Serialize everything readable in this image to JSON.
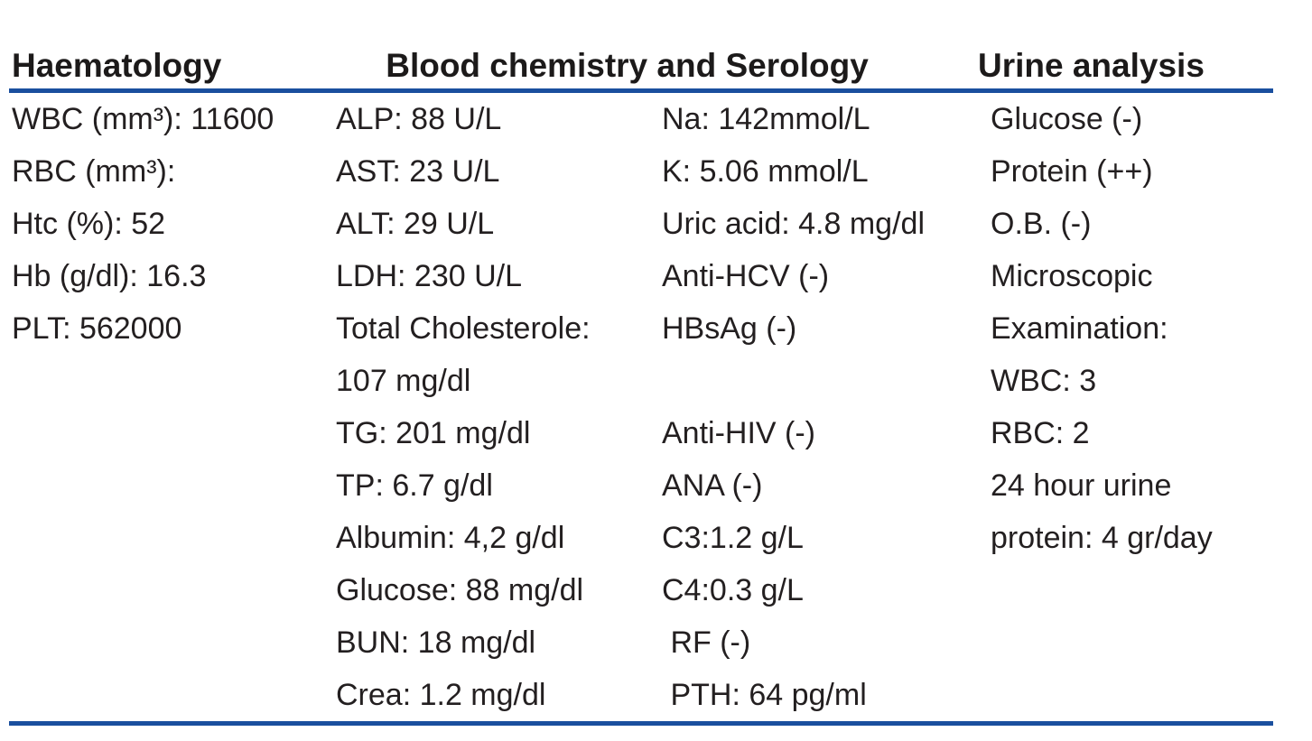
{
  "colors": {
    "accent_rule": "#1a4f9e",
    "body_text": "#231f20",
    "header_text": "#1c1a1a",
    "background": "#ffffff"
  },
  "table": {
    "headers": [
      "Haematology",
      "Blood chemistry and Serology",
      "Urine analysis"
    ],
    "rows": [
      [
        "WBC (mm³): 11600",
        "ALP: 88 U/L",
        "Na: 142mmol/L",
        "Glucose (-)"
      ],
      [
        "RBC (mm³):",
        "AST: 23 U/L",
        "K: 5.06 mmol/L",
        "Protein (++)"
      ],
      [
        "Htc (%): 52",
        "ALT: 29 U/L",
        "Uric acid: 4.8 mg/dl",
        "O.B. (-)"
      ],
      [
        "Hb (g/dl): 16.3",
        "LDH: 230 U/L",
        "Anti-HCV (-)",
        "Microscopic"
      ],
      [
        "PLT: 562000",
        "Total Cholesterole:",
        "HBsAg (-)",
        "Examination:"
      ],
      [
        "",
        "107 mg/dl",
        "",
        "WBC: 3"
      ],
      [
        "",
        "TG: 201 mg/dl",
        "Anti-HIV (-)",
        "RBC: 2"
      ],
      [
        "",
        "TP: 6.7 g/dl",
        "ANA (-)",
        "24 hour urine"
      ],
      [
        "",
        "Albumin: 4,2 g/dl",
        "C3:1.2 g/L",
        "protein: 4 gr/day"
      ],
      [
        "",
        "Glucose: 88 mg/dl",
        "C4:0.3 g/L",
        ""
      ],
      [
        "",
        "BUN: 18 mg/dl",
        " RF (-)",
        ""
      ],
      [
        "",
        "Crea: 1.2 mg/dl",
        " PTH: 64 pg/ml",
        ""
      ]
    ]
  }
}
